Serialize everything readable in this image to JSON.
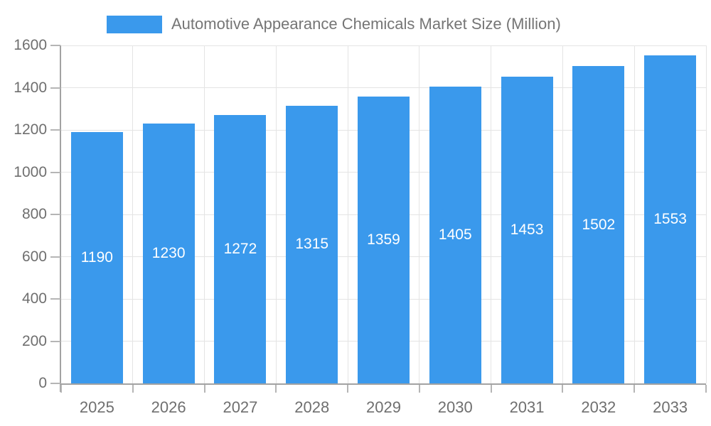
{
  "chart_data": {
    "type": "bar",
    "title": "Automotive Appearance Chemicals Market Size (Million)",
    "categories": [
      "2025",
      "2026",
      "2027",
      "2028",
      "2029",
      "2030",
      "2031",
      "2032",
      "2033"
    ],
    "values": [
      1190,
      1230,
      1272,
      1315,
      1359,
      1405,
      1453,
      1502,
      1553
    ],
    "series": [
      {
        "name": "Automotive Appearance Chemicals Market Size (Million)",
        "values": [
          1190,
          1230,
          1272,
          1315,
          1359,
          1405,
          1453,
          1502,
          1553
        ]
      }
    ],
    "xlabel": "",
    "ylabel": "",
    "ylim": [
      0,
      1600
    ],
    "yticks": [
      0,
      200,
      400,
      600,
      800,
      1000,
      1200,
      1400,
      1600
    ],
    "grid": true,
    "legend_position": "top",
    "bar_color": "#3A99EC",
    "bar_label_color": "#ffffff",
    "axis_text_color": "#6f6f6f",
    "legend_text_color": "#757575",
    "gridline_color": "#e4e4e4",
    "axis_line_color": "#a2a2a2"
  }
}
